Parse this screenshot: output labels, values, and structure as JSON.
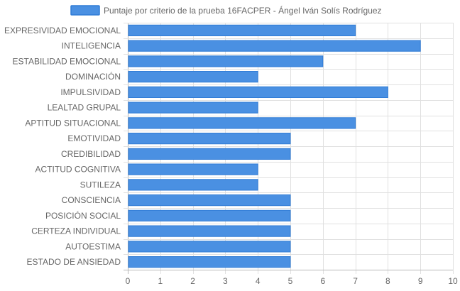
{
  "chart_data": {
    "type": "bar",
    "orientation": "horizontal",
    "legend": "top",
    "grid": true,
    "series": [
      {
        "name": "Puntaje por criterio de la prueba 16FACPER - Ángel Iván Solís Rodríguez",
        "color": "#4a90e2",
        "values": [
          7,
          9,
          6,
          4,
          8,
          4,
          7,
          5,
          5,
          4,
          4,
          5,
          5,
          5,
          5,
          5
        ]
      }
    ],
    "categories": [
      "EXPRESIVIDAD EMOCIONAL",
      "INTELIGENCIA",
      "ESTABILIDAD EMOCIONAL",
      "DOMINACIÓN",
      "IMPULSIVIDAD",
      "LEALTAD GRUPAL",
      "APTITUD SITUACIONAL",
      "EMOTIVIDAD",
      "CREDIBILIDAD",
      "ACTITUD COGNITIVA",
      "SUTILEZA",
      "CONSCIENCIA",
      "POSICIÓN SOCIAL",
      "CERTEZA INDIVIDUAL",
      "AUTOESTIMA",
      "ESTADO DE ANSIEDAD"
    ],
    "xlim": [
      0,
      10
    ],
    "xticks": [
      "0",
      "1",
      "2",
      "3",
      "4",
      "5",
      "6",
      "7",
      "8",
      "9",
      "10"
    ]
  }
}
